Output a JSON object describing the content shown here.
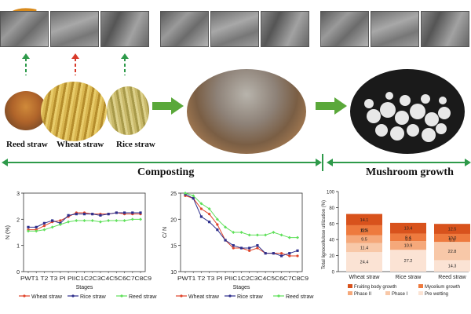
{
  "straws": {
    "reed": "Reed straw",
    "wheat": "Wheat straw",
    "rice": "Rice straw"
  },
  "stages": {
    "composting": "Composting",
    "mushroom": "Mushroom growth"
  },
  "colors": {
    "wheat_line": "#e0442a",
    "rice_line": "#2e2f8c",
    "reed_line": "#5fe05a",
    "accent_green": "#2e9a4a",
    "arrow_green": "#5aa83a"
  },
  "chart_data": [
    {
      "type": "line",
      "ylabel": "N (%)",
      "xlabel": "Stages",
      "ylim": [
        0,
        3
      ],
      "yticks": [
        "0",
        "1",
        "2",
        "3"
      ],
      "categories": [
        "PW",
        "T1",
        "T2",
        "T3",
        "PI",
        "PII",
        "C1",
        "C2",
        "C3",
        "C4",
        "C5",
        "C6",
        "C7",
        "C8",
        "C9"
      ],
      "tick_text": "PWT1 T2 T3 PI PIIC1C2C3C4C5C6C7C8C9",
      "series": [
        {
          "name": "Wheat straw",
          "values": [
            1.6,
            1.6,
            1.75,
            1.9,
            1.95,
            2.1,
            2.25,
            2.25,
            2.2,
            2.2,
            2.2,
            2.25,
            2.2,
            2.2,
            2.2
          ]
        },
        {
          "name": "Rice straw",
          "values": [
            1.7,
            1.7,
            1.85,
            1.95,
            1.85,
            2.15,
            2.2,
            2.2,
            2.2,
            2.15,
            2.2,
            2.25,
            2.25,
            2.25,
            2.25
          ]
        },
        {
          "name": "Reed straw",
          "values": [
            1.55,
            1.55,
            1.6,
            1.7,
            1.8,
            1.9,
            1.95,
            1.95,
            1.95,
            1.9,
            1.95,
            1.95,
            1.95,
            2.0,
            2.0
          ]
        }
      ],
      "legend": "bottom"
    },
    {
      "type": "line",
      "ylabel": "C/ N",
      "xlabel": "Stages",
      "ylim": [
        10,
        25
      ],
      "yticks": [
        "10",
        "15",
        "20",
        "25"
      ],
      "categories": [
        "PW",
        "T1",
        "T2",
        "T3",
        "PI",
        "PII",
        "C1",
        "C2",
        "C3",
        "C4",
        "C5",
        "C6",
        "C7",
        "C8",
        "C9"
      ],
      "tick_text": "PWT1 T2 T3 PI PIIC1C2C3C4C5C6C7C8C9",
      "series": [
        {
          "name": "Wheat straw",
          "values": [
            24.5,
            24.0,
            22.0,
            21.0,
            19.0,
            16.0,
            14.5,
            14.5,
            14.0,
            14.5,
            13.5,
            13.5,
            13.5,
            13.0,
            13.0
          ]
        },
        {
          "name": "Rice straw",
          "values": [
            24.8,
            24.0,
            20.5,
            19.5,
            18.0,
            16.0,
            15.0,
            14.5,
            14.5,
            15.0,
            13.5,
            13.5,
            13.0,
            13.5,
            14.0
          ]
        },
        {
          "name": "Reed straw",
          "values": [
            25.0,
            24.5,
            23.0,
            22.0,
            20.0,
            18.5,
            17.5,
            17.5,
            17.0,
            17.0,
            17.0,
            17.5,
            17.0,
            16.5,
            16.5
          ]
        }
      ],
      "legend": "bottom"
    },
    {
      "type": "bar",
      "stacked": true,
      "ylabel": "Total lignocellulose utilization (%)",
      "ylim": [
        0,
        100
      ],
      "yticks": [
        "0",
        "20",
        "40",
        "60",
        "80",
        "100"
      ],
      "categories": [
        "Wheat straw",
        "Rice straw",
        "Reed straw"
      ],
      "series": [
        {
          "name": "Pre wetting",
          "color": "#fbe3d4",
          "values": [
            24.4,
            27.2,
            14.3
          ]
        },
        {
          "name": "Phase I",
          "color": "#f8c8a8",
          "values": [
            11.4,
            0,
            22.8
          ]
        },
        {
          "name": "Phase II",
          "color": "#f5a87a",
          "values": [
            9.5,
            10.9,
            0
          ]
        },
        {
          "name": "Mycelium growth",
          "color": "#ee7a3e",
          "values": [
            12.6,
            9.4,
            10.0
          ]
        },
        {
          "name": "Fruiting body growth",
          "color": "#d8521c",
          "values": [
            14.1,
            13.4,
            12.5
          ]
        }
      ],
      "labels": [
        [
          "24.4",
          "11.4",
          "9.5",
          "12.6",
          "14.1"
        ],
        [
          "27.2",
          "",
          "10.9",
          "9.4",
          "13.4"
        ],
        [
          "14.3",
          "22.8",
          "",
          "10.0",
          "12.5"
        ]
      ],
      "extra_labels": [
        "8.5",
        "5.3",
        "5.9"
      ],
      "legend_items": [
        "Fruiting body growth",
        "Mycelium growth",
        "Phase II",
        "Phase I",
        "Pre wetting"
      ],
      "legend": "bottom"
    }
  ]
}
